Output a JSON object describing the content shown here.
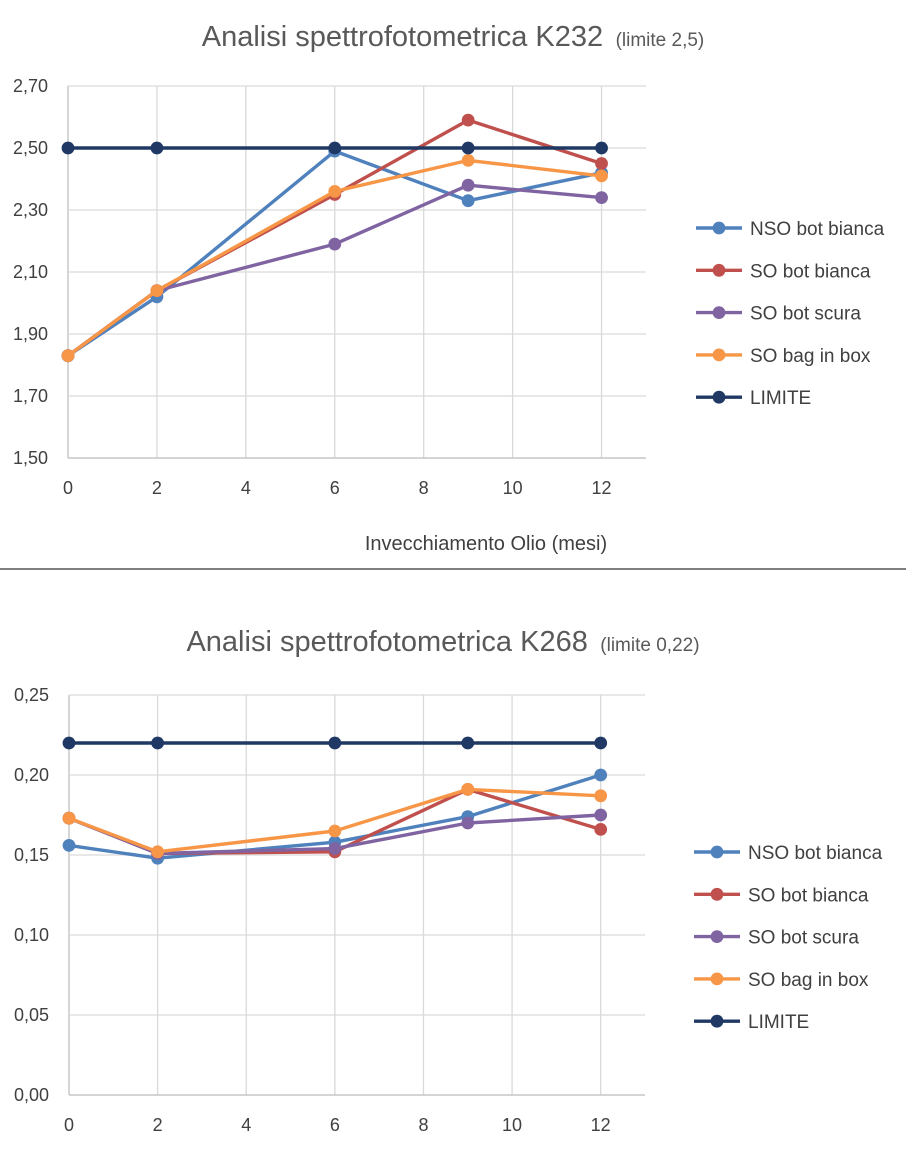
{
  "chart_data": [
    {
      "type": "line",
      "title": "Analisi spettrofotometrica K232",
      "subtitle": "(limite 2,5)",
      "xlabel": "Invecchiamento Olio (mesi)",
      "ylabel": "",
      "xlim": [
        0,
        13
      ],
      "ylim": [
        1.5,
        2.7
      ],
      "x_ticks": [
        "0",
        "2",
        "4",
        "6",
        "8",
        "10",
        "12"
      ],
      "y_ticks": [
        "1,50",
        "1,70",
        "1,90",
        "2,10",
        "2,30",
        "2,50",
        "2,70"
      ],
      "grid": true,
      "legend_position": "right",
      "series": [
        {
          "name": "NSO bot bianca",
          "color": "#4f81bd",
          "x": [
            0,
            2,
            6,
            9,
            12
          ],
          "y": [
            1.83,
            2.02,
            2.49,
            2.33,
            2.42
          ]
        },
        {
          "name": "SO bot bianca",
          "color": "#c0504d",
          "x": [
            0,
            2,
            6,
            9,
            12
          ],
          "y": [
            1.83,
            2.04,
            2.35,
            2.59,
            2.45
          ]
        },
        {
          "name": "SO bot scura",
          "color": "#8064a2",
          "x": [
            0,
            2,
            6,
            9,
            12
          ],
          "y": [
            1.83,
            2.04,
            2.19,
            2.38,
            2.34
          ]
        },
        {
          "name": "SO bag in box",
          "color": "#f79646",
          "x": [
            0,
            2,
            6,
            9,
            12
          ],
          "y": [
            1.83,
            2.04,
            2.36,
            2.46,
            2.41
          ]
        },
        {
          "name": "LIMITE",
          "color": "#1f3864",
          "x": [
            0,
            2,
            6,
            9,
            12
          ],
          "y": [
            2.5,
            2.5,
            2.5,
            2.5,
            2.5
          ]
        }
      ]
    },
    {
      "type": "line",
      "title": "Analisi spettrofotometrica K268",
      "subtitle": "(limite 0,22)",
      "xlabel": "",
      "ylabel": "",
      "xlim": [
        0,
        13
      ],
      "ylim": [
        0,
        0.25
      ],
      "x_ticks": [
        "0",
        "2",
        "4",
        "6",
        "8",
        "10",
        "12"
      ],
      "y_ticks": [
        "0,00",
        "0,05",
        "0,10",
        "0,15",
        "0,20",
        "0,25"
      ],
      "grid": true,
      "legend_position": "right",
      "series": [
        {
          "name": "NSO bot bianca",
          "color": "#4f81bd",
          "x": [
            0,
            2,
            6,
            9,
            12
          ],
          "y": [
            0.156,
            0.148,
            0.158,
            0.174,
            0.2
          ]
        },
        {
          "name": "SO bot bianca",
          "color": "#c0504d",
          "x": [
            0,
            2,
            6,
            9,
            12
          ],
          "y": [
            0.173,
            0.151,
            0.152,
            0.191,
            0.166
          ]
        },
        {
          "name": "SO bot scura",
          "color": "#8064a2",
          "x": [
            0,
            2,
            6,
            9,
            12
          ],
          "y": [
            0.173,
            0.151,
            0.154,
            0.17,
            0.175
          ]
        },
        {
          "name": "SO bag in box",
          "color": "#f79646",
          "x": [
            0,
            2,
            6,
            9,
            12
          ],
          "y": [
            0.173,
            0.152,
            0.165,
            0.191,
            0.187
          ]
        },
        {
          "name": "LIMITE",
          "color": "#1f3864",
          "x": [
            0,
            2,
            6,
            9,
            12
          ],
          "y": [
            0.22,
            0.22,
            0.22,
            0.22,
            0.22
          ]
        }
      ]
    }
  ]
}
